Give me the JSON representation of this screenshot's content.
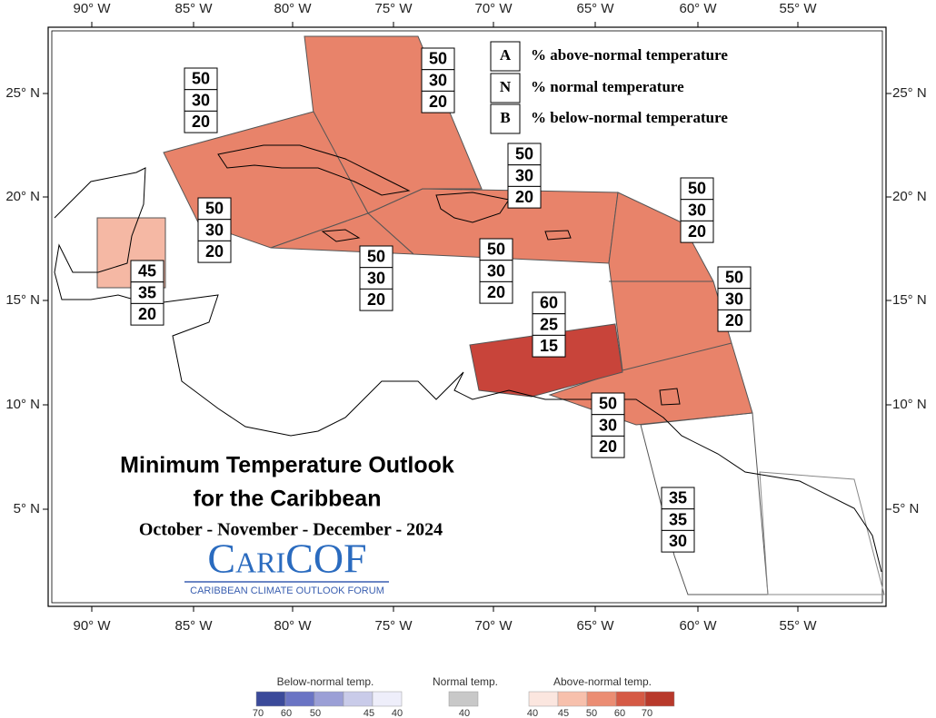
{
  "longitude_labels": [
    "90° W",
    "85° W",
    "80° W",
    "75° W",
    "70° W",
    "65° W",
    "60° W",
    "55° W"
  ],
  "latitude_labels": [
    "25° N",
    "20° N",
    "15° N",
    "10° N",
    "5° N"
  ],
  "key": [
    {
      "letter": "A",
      "text": "% above-normal temperature"
    },
    {
      "letter": "N",
      "text": "% normal temperature"
    },
    {
      "letter": "B",
      "text": "% below-normal temperature"
    }
  ],
  "regions": [
    {
      "above": 50,
      "normal": 30,
      "below": 20
    },
    {
      "above": 50,
      "normal": 30,
      "below": 20
    },
    {
      "above": 50,
      "normal": 30,
      "below": 20
    },
    {
      "above": 50,
      "normal": 30,
      "below": 20
    },
    {
      "above": 50,
      "normal": 30,
      "below": 20
    },
    {
      "above": 50,
      "normal": 30,
      "below": 20
    },
    {
      "above": 50,
      "normal": 30,
      "below": 20
    },
    {
      "above": 50,
      "normal": 30,
      "below": 20
    },
    {
      "above": 45,
      "normal": 35,
      "below": 20
    },
    {
      "above": 60,
      "normal": 25,
      "below": 15
    },
    {
      "above": 50,
      "normal": 30,
      "below": 20
    },
    {
      "above": 35,
      "normal": 35,
      "below": 30
    }
  ],
  "title_lines": [
    "Minimum Temperature Outlook",
    "for the Caribbean"
  ],
  "period": "October - November - December - 2024",
  "logo": "CariCOF",
  "logo_subtitle": "CARIBBEAN CLIMATE OUTLOOK FORUM",
  "color_legend": [
    {
      "label": "Below-normal temp.",
      "ticks": [
        70,
        60,
        50,
        45,
        40
      ]
    },
    {
      "label": "Normal temp.",
      "ticks": [
        40
      ]
    },
    {
      "label": "Above-normal temp.",
      "ticks": [
        40,
        45,
        50,
        60,
        70
      ]
    }
  ]
}
